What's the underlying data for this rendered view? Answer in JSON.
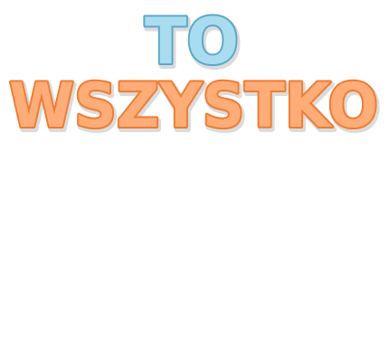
{
  "title": {
    "line1": "TO",
    "line2": "WSZYSTKO"
  },
  "colors": {
    "background": "#ffffff",
    "line1_fill": "#a9dcef",
    "line1_stroke": "#5aa8c8",
    "line2_fill": "#ffad78",
    "line2_stroke": "#f07b30",
    "shadow": "#9a9a9a"
  }
}
